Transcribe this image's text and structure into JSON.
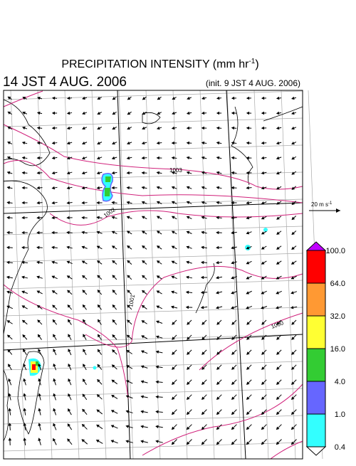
{
  "header": {
    "title": {
      "text": "PRECIPITATION INTENSITY (mm hr",
      "superscript": "-1",
      "suffix": ")"
    },
    "valid_time": "14 JST 4 AUG. 2006",
    "init_time": "(init. 9 JST 4 AUG. 2006)"
  },
  "isobars": {
    "labels": [
      "1003",
      "1002",
      "1001",
      "1000"
    ],
    "color": "#d0207a"
  },
  "vector_reference": {
    "text": "20 m s",
    "superscript": "-1"
  },
  "colorbar": {
    "labels": [
      "100.0",
      "64.0",
      "32.0",
      "16.0",
      "4.0",
      "1.0",
      "0.4"
    ],
    "colors": [
      "#ff0000",
      "#ff9933",
      "#ffff33",
      "#33cc33",
      "#6666ff",
      "#33ffff"
    ],
    "over_color": "#c000ff",
    "under_color": "#ffffff"
  }
}
